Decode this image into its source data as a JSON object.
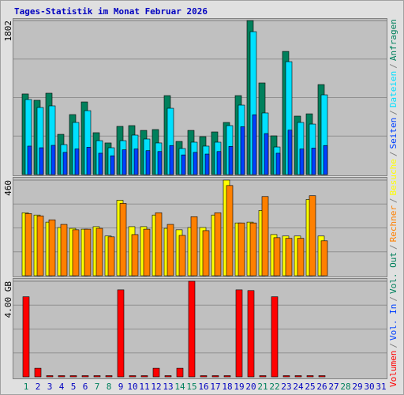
{
  "legend_separator": "/",
  "chart_data": [
    {
      "type": "bar",
      "title": "Tages-Statistik im Monat Februar 2026",
      "ylim": [
        0,
        1802
      ],
      "yticks": [
        1802
      ],
      "series": [
        {
          "name": "Anfragen",
          "color": "#00805c",
          "values": [
            943,
            869,
            952,
            471,
            702,
            850,
            490,
            370,
            564,
            573,
            517,
            527,
            924,
            388,
            517,
            444,
            499,
            610,
            924,
            1802,
            1072,
            453,
            1441,
            684,
            711,
            1053,
            null,
            null,
            null,
            null,
            null
          ]
        },
        {
          "name": "Dateien",
          "color": "#00e0ff",
          "values": [
            878,
            785,
            804,
            351,
            610,
            748,
            397,
            314,
            397,
            462,
            416,
            370,
            776,
            305,
            379,
            333,
            379,
            573,
            813,
            1672,
            721,
            323,
            1321,
            610,
            591,
            933,
            null,
            null,
            null,
            null,
            null
          ]
        },
        {
          "name": "Seiten",
          "color": "#0040ff",
          "values": [
            333,
            314,
            342,
            260,
            300,
            320,
            250,
            220,
            290,
            300,
            280,
            270,
            340,
            230,
            260,
            240,
            270,
            330,
            560,
            700,
            480,
            250,
            520,
            300,
            310,
            340,
            null,
            null,
            null,
            null,
            null
          ]
        }
      ]
    },
    {
      "type": "bar",
      "ylim": [
        0,
        460
      ],
      "yticks": [
        460
      ],
      "series": [
        {
          "name": "Besuche",
          "color": "#ffff00",
          "values": [
            303,
            292,
            258,
            232,
            228,
            224,
            236,
            191,
            363,
            236,
            236,
            292,
            228,
            221,
            232,
            232,
            292,
            460,
            254,
            258,
            314,
            198,
            191,
            191,
            367,
            191,
            null,
            null,
            null,
            null,
            null
          ]
        },
        {
          "name": "Rechner",
          "color": "#ff8000",
          "values": [
            299,
            288,
            269,
            247,
            221,
            224,
            228,
            187,
            348,
            198,
            224,
            303,
            247,
            194,
            284,
            217,
            303,
            434,
            254,
            254,
            381,
            183,
            180,
            180,
            385,
            168,
            null,
            null,
            null,
            null,
            null
          ]
        }
      ]
    },
    {
      "type": "bar",
      "ylim": [
        0,
        4
      ],
      "yticks": [
        {
          "value": 4,
          "label": "4.00 GB"
        }
      ],
      "categories": [
        "1",
        "2",
        "3",
        "4",
        "5",
        "6",
        "7",
        "8",
        "9",
        "10",
        "11",
        "12",
        "13",
        "14",
        "15",
        "16",
        "17",
        "18",
        "19",
        "20",
        "21",
        "22",
        "23",
        "24",
        "25",
        "26",
        "27",
        "28",
        "29",
        "30",
        "31"
      ],
      "category_colors": [
        "#00805c",
        "#0000c0",
        "#0000c0",
        "#0000c0",
        "#0000c0",
        "#0000c0",
        "#00805c",
        "#00805c",
        "#0000c0",
        "#0000c0",
        "#0000c0",
        "#0000c0",
        "#0000c0",
        "#00805c",
        "#00805c",
        "#0000c0",
        "#0000c0",
        "#0000c0",
        "#0000c0",
        "#0000c0",
        "#00805c",
        "#00805c",
        "#0000c0",
        "#0000c0",
        "#0000c0",
        "#0000c0",
        "#0000c0",
        "#00805c",
        "#0000c0",
        "#0000c0",
        "#0000c0"
      ],
      "series": [
        {
          "name": "Volumen",
          "color": "#ff0000",
          "values": [
            3.35,
            0.36,
            0.05,
            0.05,
            0.05,
            0.05,
            0.05,
            0.05,
            3.64,
            0.05,
            0.05,
            0.36,
            0.05,
            0.36,
            4.0,
            0.05,
            0.05,
            0.05,
            3.64,
            3.61,
            0.05,
            3.35,
            0.05,
            0.05,
            0.05,
            0.05,
            null,
            null,
            null,
            null,
            null
          ]
        }
      ],
      "legend_extra": [
        {
          "name": "Vol. In",
          "color": "#0040ff"
        },
        {
          "name": "Vol. Out",
          "color": "#00805c"
        }
      ]
    }
  ]
}
